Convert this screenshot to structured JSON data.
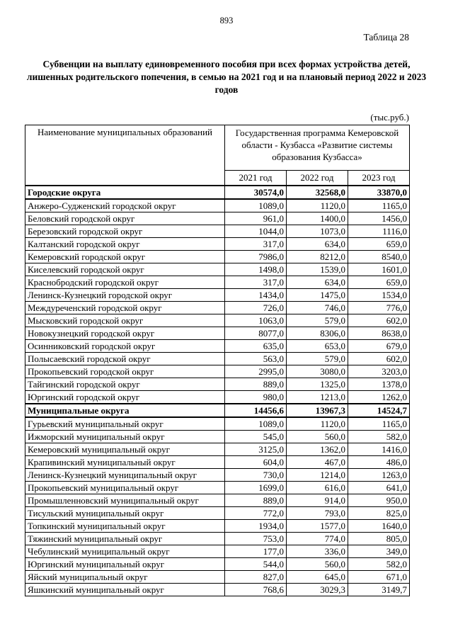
{
  "page": {
    "number": "893",
    "table_label": "Таблица 28",
    "title": "Субвенции на выплату единовременного пособия при всех формах устройства детей, лишенных родительского попечения, в семью на 2021 год и на плановый период 2022 и 2023 годов",
    "units": "(тыс.руб.)"
  },
  "table": {
    "col1_header": "Наименование муниципальных образований",
    "program_header": "Государственная программа Кемеровской области - Кузбасса «Развитие системы образования Кузбасса»",
    "year_headers": [
      "2021 год",
      "2022 год",
      "2023 год"
    ],
    "rows": [
      {
        "name": "Городские округа",
        "section": true,
        "values": [
          "30574,0",
          "32568,0",
          "33870,0"
        ]
      },
      {
        "name": "Анжеро-Судженский городской округ",
        "values": [
          "1089,0",
          "1120,0",
          "1165,0"
        ]
      },
      {
        "name": "Беловский городской округ",
        "values": [
          "961,0",
          "1400,0",
          "1456,0"
        ]
      },
      {
        "name": "Березовский городской округ",
        "values": [
          "1044,0",
          "1073,0",
          "1116,0"
        ]
      },
      {
        "name": "Калтанский городской округ",
        "values": [
          "317,0",
          "634,0",
          "659,0"
        ]
      },
      {
        "name": "Кемеровский городской округ",
        "values": [
          "7986,0",
          "8212,0",
          "8540,0"
        ]
      },
      {
        "name": "Киселевский городской округ",
        "values": [
          "1498,0",
          "1539,0",
          "1601,0"
        ]
      },
      {
        "name": "Краснобродский городской округ",
        "values": [
          "317,0",
          "634,0",
          "659,0"
        ]
      },
      {
        "name": "Ленинск-Кузнецкий городской округ",
        "values": [
          "1434,0",
          "1475,0",
          "1534,0"
        ]
      },
      {
        "name": "Междуреченский городской округ",
        "values": [
          "726,0",
          "746,0",
          "776,0"
        ]
      },
      {
        "name": "Мысковский городской округ",
        "values": [
          "1063,0",
          "579,0",
          "602,0"
        ]
      },
      {
        "name": "Новокузнецкий городской округ",
        "values": [
          "8077,0",
          "8306,0",
          "8638,0"
        ]
      },
      {
        "name": "Осинниковский городской округ",
        "values": [
          "635,0",
          "653,0",
          "679,0"
        ]
      },
      {
        "name": "Полысаевский городской округ",
        "values": [
          "563,0",
          "579,0",
          "602,0"
        ]
      },
      {
        "name": "Прокопьевский городской округ",
        "values": [
          "2995,0",
          "3080,0",
          "3203,0"
        ]
      },
      {
        "name": "Тайгинский городской округ",
        "values": [
          "889,0",
          "1325,0",
          "1378,0"
        ]
      },
      {
        "name": "Юргинский городской округ",
        "values": [
          "980,0",
          "1213,0",
          "1262,0"
        ]
      },
      {
        "name": "Муниципальные округа",
        "section": true,
        "values": [
          "14456,6",
          "13967,3",
          "14524,7"
        ]
      },
      {
        "name": "Гурьевский муниципальный округ",
        "values": [
          "1089,0",
          "1120,0",
          "1165,0"
        ]
      },
      {
        "name": "Ижморский муниципальный округ",
        "values": [
          "545,0",
          "560,0",
          "582,0"
        ]
      },
      {
        "name": "Кемеровский муниципальный округ",
        "values": [
          "3125,0",
          "1362,0",
          "1416,0"
        ]
      },
      {
        "name": "Крапивинский муниципальный округ",
        "values": [
          "604,0",
          "467,0",
          "486,0"
        ]
      },
      {
        "name": "Ленинск-Кузнецкий муниципальный округ",
        "values": [
          "730,0",
          "1214,0",
          "1263,0"
        ]
      },
      {
        "name": "Прокопьевский муниципальный округ",
        "values": [
          "1699,0",
          "616,0",
          "641,0"
        ]
      },
      {
        "name": "Промышленновский муниципальный округ",
        "values": [
          "889,0",
          "914,0",
          "950,0"
        ]
      },
      {
        "name": "Тисульский муниципальный округ",
        "values": [
          "772,0",
          "793,0",
          "825,0"
        ]
      },
      {
        "name": "Топкинский муниципальный округ",
        "values": [
          "1934,0",
          "1577,0",
          "1640,0"
        ]
      },
      {
        "name": "Тяжинский муниципальный округ",
        "values": [
          "753,0",
          "774,0",
          "805,0"
        ]
      },
      {
        "name": "Чебулинский муниципальный округ",
        "values": [
          "177,0",
          "336,0",
          "349,0"
        ]
      },
      {
        "name": "Юргинский муниципальный округ",
        "values": [
          "544,0",
          "560,0",
          "582,0"
        ]
      },
      {
        "name": "Яйский муниципальный округ",
        "values": [
          "827,0",
          "645,0",
          "671,0"
        ]
      },
      {
        "name": "Яшкинский муниципальный округ",
        "values": [
          "768,6",
          "3029,3",
          "3149,7"
        ]
      }
    ]
  }
}
